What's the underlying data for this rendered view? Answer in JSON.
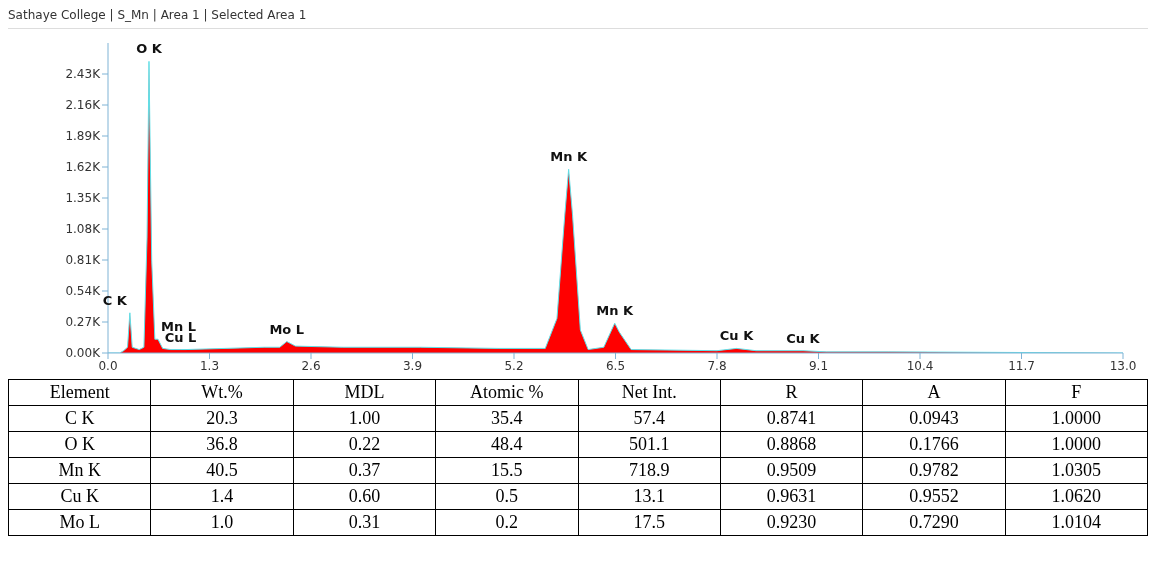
{
  "chart_data": [
    {
      "type": "area",
      "title": "Sathaye College | S_Mn | Area 1 | Selected Area 1",
      "x": [
        0,
        0.15,
        0.2,
        0.25,
        0.28,
        0.31,
        0.4,
        0.46,
        0.5,
        0.525,
        0.56,
        0.6,
        0.64,
        0.7,
        0.8,
        0.93,
        1.0,
        1.5,
        2.0,
        2.2,
        2.29,
        2.4,
        3.0,
        4.0,
        5.0,
        5.6,
        5.75,
        5.85,
        5.9,
        5.95,
        6.05,
        6.15,
        6.35,
        6.45,
        6.49,
        6.55,
        6.7,
        7.8,
        8.05,
        8.3,
        8.9,
        9.2,
        10,
        13
      ],
      "series": [
        {
          "color": "#ff0000",
          "values": [
            0,
            0,
            0.02,
            0.05,
            0.35,
            0.05,
            0.03,
            0.05,
            1.0,
            2.54,
            0.8,
            0.12,
            0.12,
            0.04,
            0.03,
            0.03,
            0.03,
            0.04,
            0.05,
            0.05,
            0.1,
            0.06,
            0.05,
            0.05,
            0.04,
            0.04,
            0.3,
            1.2,
            1.6,
            1.2,
            0.2,
            0.03,
            0.05,
            0.2,
            0.26,
            0.18,
            0.03,
            0.02,
            0.04,
            0.02,
            0.02,
            0.01,
            0.01,
            0
          ]
        }
      ],
      "xlim": [
        0,
        13
      ],
      "xticks": [
        {
          "value": 0,
          "label": "0.0"
        },
        1.3,
        2.6,
        3.9,
        5.2,
        6.5,
        7.8,
        9.1,
        10.4,
        11.7,
        {
          "value": 13,
          "label": "13.0"
        }
      ],
      "ylim": [
        0,
        2.7
      ],
      "yticks": [
        {
          "value": 0,
          "label": "0.00K"
        },
        {
          "value": 0.27,
          "label": "0.27K"
        },
        {
          "value": 0.54,
          "label": "0.54K"
        },
        {
          "value": 0.81,
          "label": "0.81K"
        },
        {
          "value": 1.08,
          "label": "1.08K"
        },
        {
          "value": 1.35,
          "label": "1.35K"
        },
        {
          "value": 1.62,
          "label": "1.62K"
        },
        {
          "value": 1.89,
          "label": "1.89K"
        },
        {
          "value": 2.16,
          "label": "2.16K"
        },
        {
          "value": 2.43,
          "label": "2.43K"
        }
      ],
      "annotations": [
        {
          "text": "O K",
          "x": 0.525,
          "y": 2.54
        },
        {
          "text": "C K",
          "x": 0.28,
          "y": 0.35
        },
        {
          "text": "Mn L",
          "x": 0.64,
          "y": 0.12
        },
        {
          "text": "Cu L",
          "x": 0.93,
          "y": 0.03
        },
        {
          "text": "Mo L",
          "x": 2.29,
          "y": 0.1
        },
        {
          "text": "Mn K",
          "x": 5.9,
          "y": 1.6
        },
        {
          "text": "Mn K",
          "x": 6.49,
          "y": 0.26
        },
        {
          "text": "Cu K",
          "x": 8.05,
          "y": 0.04
        },
        {
          "text": "Cu K",
          "x": 8.9,
          "y": 0.02
        }
      ],
      "grid": false,
      "legend": false
    },
    {
      "type": "heatmap",
      "ylabel": "Element",
      "categories": [
        "Wt.%",
        "MDL",
        "Atomic %",
        "Net Int.",
        "R",
        "A",
        "F"
      ],
      "y_categories": [
        "C K",
        "O K",
        "Mn K",
        "Cu K",
        "Mo L"
      ],
      "cells": [
        [
          20.3,
          1.0,
          35.4,
          57.4,
          0.8741,
          0.0943,
          1.0
        ],
        [
          36.8,
          0.22,
          48.4,
          501.1,
          0.8868,
          0.1766,
          1.0
        ],
        [
          40.5,
          0.37,
          15.5,
          718.9,
          0.9509,
          0.9782,
          1.0305
        ],
        [
          1.4,
          0.6,
          0.5,
          13.1,
          0.9631,
          0.9552,
          1.062
        ],
        [
          1.0,
          0.31,
          0.2,
          17.5,
          0.923,
          0.729,
          1.0104
        ]
      ],
      "cell_labels": [
        [
          "20.3",
          "1.00",
          "35.4",
          "57.4",
          "0.8741",
          "0.0943",
          "1.0000"
        ],
        [
          "36.8",
          "0.22",
          "48.4",
          "501.1",
          "0.8868",
          "0.1766",
          "1.0000"
        ],
        [
          "40.5",
          "0.37",
          "15.5",
          "718.9",
          "0.9509",
          "0.9782",
          "1.0305"
        ],
        [
          "1.4",
          "0.60",
          "0.5",
          "13.1",
          "0.9631",
          "0.9552",
          "1.0620"
        ],
        [
          "1.0",
          "0.31",
          "0.2",
          "17.5",
          "0.9230",
          "0.7290",
          "1.0104"
        ]
      ]
    }
  ]
}
